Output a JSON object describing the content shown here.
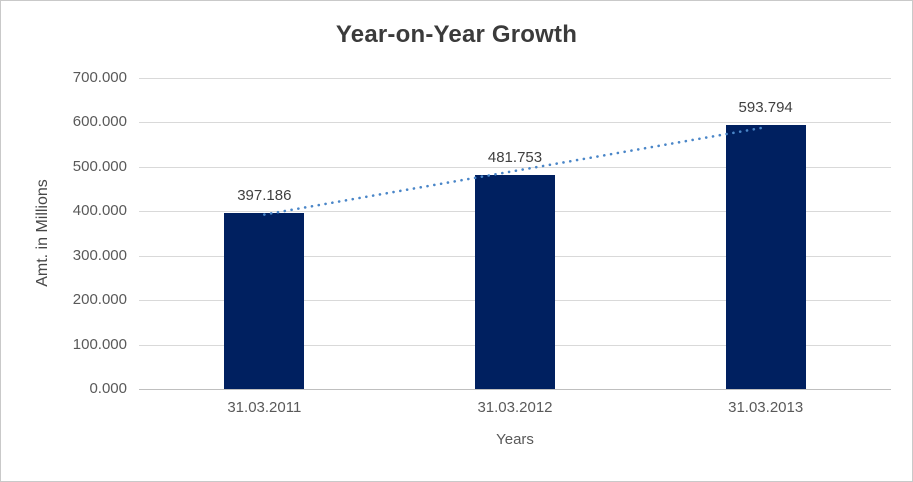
{
  "chart_data": {
    "type": "bar",
    "title": "Year-on-Year Growth",
    "xlabel": "Years",
    "ylabel": "Amt. in Millions",
    "categories": [
      "31.03.2011",
      "31.03.2012",
      "31.03.2013"
    ],
    "values": [
      397.186,
      481.753,
      593.794
    ],
    "bar_labels": [
      "397.186",
      "481.753",
      "593.794"
    ],
    "ylim": [
      0,
      700
    ],
    "y_ticks": [
      0,
      100,
      200,
      300,
      400,
      500,
      600,
      700
    ],
    "y_tick_labels": [
      "0.000",
      "100.000",
      "200.000",
      "300.000",
      "400.000",
      "500.000",
      "600.000",
      "700.000"
    ],
    "grid": true,
    "legend": false,
    "colors": {
      "bar": "#002060",
      "trendline": "#4a86c8",
      "gridline": "#d9d9d9",
      "axis_line": "#bfbfbf",
      "title_text": "#3b3b3b",
      "tick_text": "#595959",
      "data_label_text": "#404040"
    },
    "trendline": {
      "type": "linear",
      "style": "dotted"
    }
  }
}
